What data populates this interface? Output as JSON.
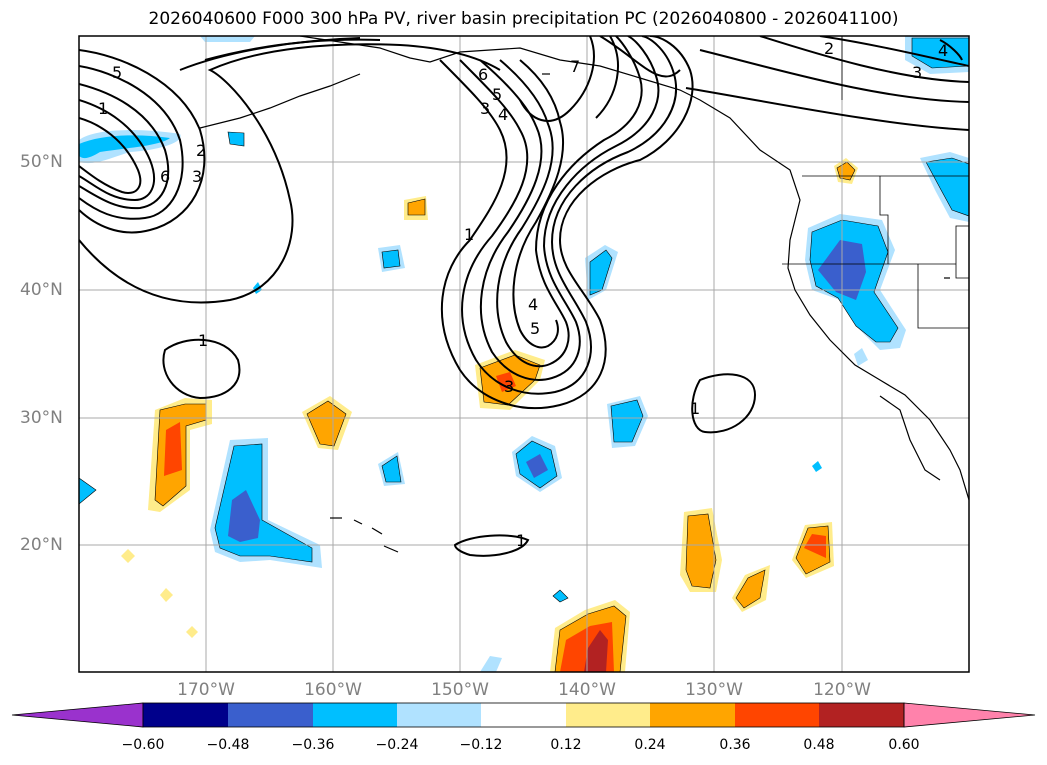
{
  "title": "2026040600 F000 300 hPa PV, river basin precipitation PC (2026040800 - 2026041100)",
  "latitudes": [
    "50°N",
    "40°N",
    "30°N",
    "20°N"
  ],
  "longitudes": [
    "170°W",
    "160°W",
    "150°W",
    "140°W",
    "130°W",
    "120°W"
  ],
  "pv_contour_labels": [
    "5",
    "1",
    "2",
    "3",
    "6",
    "6",
    "5",
    "3",
    "4",
    "7",
    "1",
    "4",
    "5",
    "3",
    "1",
    "1",
    "1",
    "2",
    "3",
    "4"
  ],
  "colorbar": {
    "ticks": [
      "−0.60",
      "−0.48",
      "−0.36",
      "−0.24",
      "−0.12",
      "0.12",
      "0.24",
      "0.36",
      "0.48",
      "0.60"
    ],
    "colors": [
      "#9a32cd",
      "#00008b",
      "#3a5fcd",
      "#00bfff",
      "#b0e2ff",
      "#ffffff",
      "#ffec8b",
      "#ffa500",
      "#ff4500",
      "#b22222",
      "#ff82ab"
    ]
  }
}
